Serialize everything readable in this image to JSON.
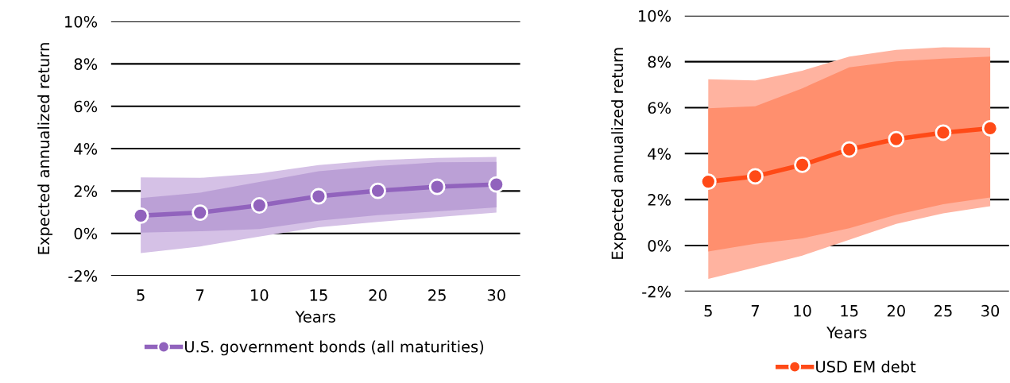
{
  "chart_data": [
    {
      "type": "line",
      "xlabel": "Years",
      "ylabel": "Expected annualized return",
      "categories": [
        "5",
        "7",
        "10",
        "15",
        "20",
        "25",
        "30"
      ],
      "series": [
        {
          "name": null,
          "color": "#d5c1e6",
          "values": [
            null,
            null,
            null,
            null,
            null,
            null,
            null
          ],
          "lower": [
            -0.93,
            -0.62,
            -0.15,
            0.29,
            0.54,
            0.77,
            0.98
          ],
          "upper": [
            2.64,
            2.62,
            2.83,
            3.22,
            3.46,
            3.56,
            3.61
          ]
        },
        {
          "name": null,
          "color": "#bba0d6",
          "values": [
            null,
            null,
            null,
            null,
            null,
            null,
            null
          ],
          "lower": [
            0.04,
            0.1,
            0.2,
            0.6,
            0.86,
            1.04,
            1.23
          ],
          "upper": [
            1.67,
            1.92,
            2.43,
            2.93,
            3.18,
            3.35,
            3.37
          ]
        },
        {
          "name": "U.S. government bonds (all maturities)",
          "color": "#9163bd",
          "values": [
            0.84,
            0.98,
            1.32,
            1.75,
            2.01,
            2.2,
            2.31
          ]
        }
      ],
      "ylim": [
        -2,
        10
      ],
      "yticks": [
        {
          "value": -2,
          "label": "-2%"
        },
        {
          "value": 0,
          "label": "0%"
        },
        {
          "value": 2,
          "label": "2%"
        },
        {
          "value": 4,
          "label": "4%"
        },
        {
          "value": 6,
          "label": "6%"
        },
        {
          "value": 8,
          "label": "8%"
        },
        {
          "value": 10,
          "label": "10%"
        }
      ],
      "grid": "y",
      "legend": "bottom",
      "marker": "circle",
      "line_style": "solid"
    },
    {
      "type": "line",
      "xlabel": "Years",
      "ylabel": "Expected annualized return",
      "categories": [
        "5",
        "7",
        "10",
        "15",
        "20",
        "25",
        "30"
      ],
      "series": [
        {
          "name": null,
          "color": "#ffb3a0",
          "values": [
            null,
            null,
            null,
            null,
            null,
            null,
            null
          ],
          "lower": [
            -1.45,
            -0.95,
            -0.44,
            0.25,
            0.94,
            1.4,
            1.71
          ],
          "upper": [
            7.23,
            7.18,
            7.61,
            8.22,
            8.51,
            8.63,
            8.61
          ]
        },
        {
          "name": null,
          "color": "#ff8f6e",
          "values": [
            null,
            null,
            null,
            null,
            null,
            null,
            null
          ],
          "lower": [
            -0.26,
            0.08,
            0.31,
            0.75,
            1.34,
            1.8,
            2.09
          ],
          "upper": [
            5.97,
            6.06,
            6.84,
            7.75,
            8.01,
            8.13,
            8.22
          ]
        },
        {
          "name": "USD EM debt",
          "color": "#ff4a17",
          "values": [
            2.78,
            3.01,
            3.51,
            4.18,
            4.63,
            4.91,
            5.1
          ]
        }
      ],
      "ylim": [
        -2,
        10
      ],
      "yticks": [
        {
          "value": -2,
          "label": "-2%"
        },
        {
          "value": 0,
          "label": "0%"
        },
        {
          "value": 2,
          "label": "2%"
        },
        {
          "value": 4,
          "label": "4%"
        },
        {
          "value": 6,
          "label": "6%"
        },
        {
          "value": 8,
          "label": "8%"
        },
        {
          "value": 10,
          "label": "10%"
        }
      ],
      "grid": "y",
      "legend": "bottom",
      "marker": "circle",
      "line_style": "solid"
    }
  ]
}
